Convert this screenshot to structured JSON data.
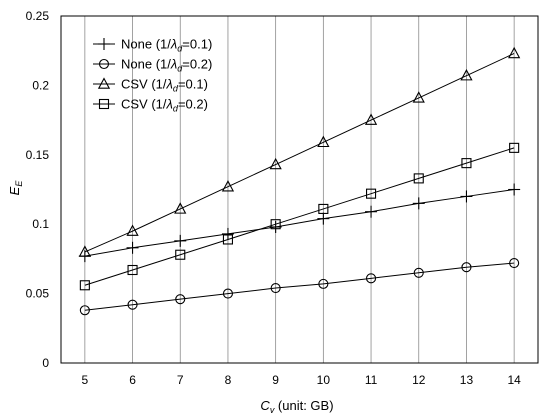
{
  "chart_data": {
    "type": "line",
    "title": "",
    "x": [
      5,
      6,
      7,
      8,
      9,
      10,
      11,
      12,
      13,
      14
    ],
    "xlabel": {
      "main": "C",
      "sub": "v",
      "suffix": " (unit: GB)"
    },
    "ylabel": {
      "main": "E",
      "sub": "E"
    },
    "xlim": [
      4.5,
      14.5
    ],
    "ylim": [
      0,
      0.25
    ],
    "x_ticks": [
      "5",
      "6",
      "7",
      "8",
      "9",
      "10",
      "11",
      "12",
      "13",
      "14"
    ],
    "y_ticks": [
      "0",
      "0.05",
      "0.1",
      "0.15",
      "0.2",
      "0.25"
    ],
    "y_tick_values": [
      0,
      0.05,
      0.1,
      0.15,
      0.2,
      0.25
    ],
    "grid": {
      "vertical": true,
      "horizontal": false
    },
    "legend_position": "top-left",
    "series": [
      {
        "name": "None (1/λd=0.1)",
        "label": {
          "prefix": "None (1/",
          "symbol": "λ",
          "sub": "d",
          "suffix": "=0.1)"
        },
        "marker": "plus",
        "values": [
          0.077,
          0.083,
          0.088,
          0.093,
          0.098,
          0.104,
          0.109,
          0.115,
          0.12,
          0.125
        ]
      },
      {
        "name": "None (1/λd=0.2)",
        "label": {
          "prefix": "None (1/",
          "symbol": "λ",
          "sub": "d",
          "suffix": "=0.2)"
        },
        "marker": "circle",
        "values": [
          0.038,
          0.042,
          0.046,
          0.05,
          0.054,
          0.057,
          0.061,
          0.065,
          0.069,
          0.072
        ]
      },
      {
        "name": "CSV (1/λd=0.1)",
        "label": {
          "prefix": "CSV (1/",
          "symbol": "λ",
          "sub": "d",
          "suffix": "=0.1)"
        },
        "marker": "triangle",
        "values": [
          0.08,
          0.095,
          0.111,
          0.127,
          0.143,
          0.159,
          0.175,
          0.191,
          0.207,
          0.223
        ]
      },
      {
        "name": "CSV (1/λd=0.2)",
        "label": {
          "prefix": "CSV (1/",
          "symbol": "λ",
          "sub": "d",
          "suffix": "=0.2)"
        },
        "marker": "square",
        "values": [
          0.056,
          0.067,
          0.078,
          0.089,
          0.1,
          0.111,
          0.122,
          0.133,
          0.144,
          0.155
        ]
      }
    ],
    "colors": {
      "line": "#000000",
      "grid": "#8c8c8c",
      "frame": "#000000",
      "background": "#ffffff"
    }
  }
}
